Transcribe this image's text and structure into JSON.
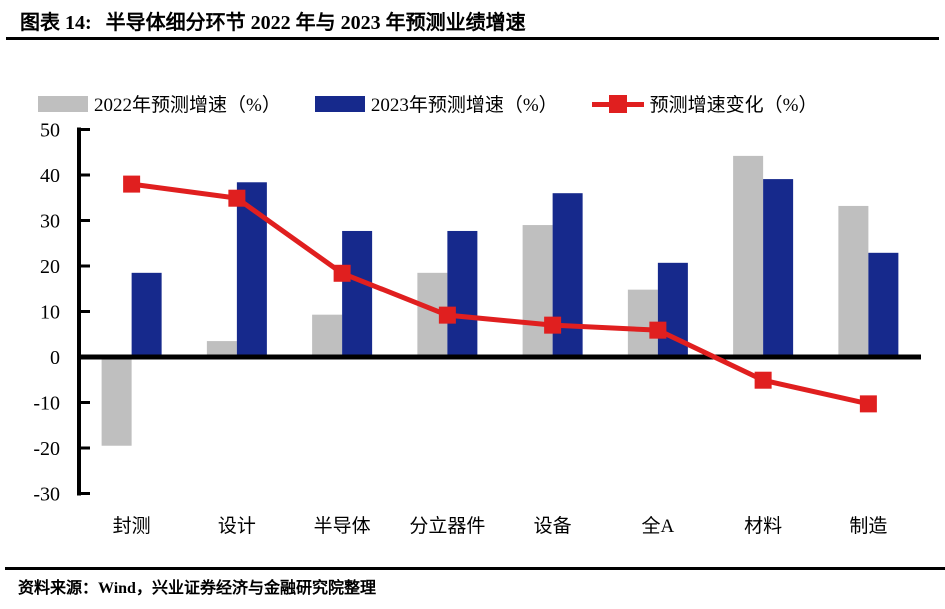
{
  "header": {
    "figure_label": "图表 14:",
    "title": "半导体细分环节 2022 年与 2023 年预测业绩增速"
  },
  "legend": {
    "items": [
      {
        "label": "2022年预测增速（%）",
        "color": "#BFBFBF",
        "type": "bar"
      },
      {
        "label": "2023年预测增速（%）",
        "color": "#16298C",
        "type": "bar"
      },
      {
        "label": "预测增速变化（%）",
        "color": "#E01F1F",
        "type": "line-marker"
      }
    ]
  },
  "chart_data": {
    "type": "bar+line",
    "title": "半导体细分环节 2022 年与 2023 年预测业绩增速",
    "categories": [
      "封测",
      "设计",
      "半导体",
      "分立器件",
      "设备",
      "全A",
      "材料",
      "制造"
    ],
    "series": [
      {
        "name": "2022年预测增速（%）",
        "type": "bar",
        "color": "#BFBFBF",
        "values": [
          -19.5,
          3.5,
          9.3,
          18.5,
          29.0,
          14.8,
          44.2,
          33.2
        ]
      },
      {
        "name": "2023年预测增速（%）",
        "type": "bar",
        "color": "#16298C",
        "values": [
          18.5,
          38.4,
          27.7,
          27.7,
          36.0,
          20.7,
          39.1,
          22.9
        ]
      },
      {
        "name": "预测增速变化（%）",
        "type": "line",
        "color": "#E01F1F",
        "marker": "square",
        "values": [
          38.0,
          34.9,
          18.4,
          9.2,
          7.0,
          5.9,
          -5.1,
          -10.3
        ]
      }
    ],
    "ylim": [
      -30,
      50
    ],
    "yticks": [
      50,
      40,
      30,
      20,
      10,
      0,
      -10,
      -20,
      -30
    ],
    "grid": false,
    "legend_position": "top",
    "axis_color": "#000000"
  },
  "footer": {
    "source": "资料来源：Wind，兴业证券经济与金融研究院整理"
  }
}
